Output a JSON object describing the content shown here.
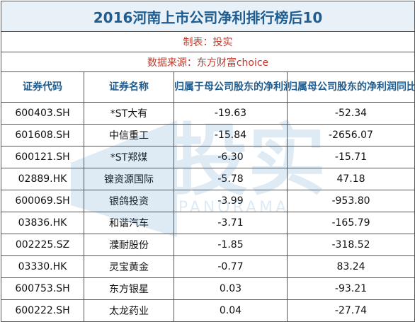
{
  "table": {
    "title": "2016河南上市公司净利排行榜后10",
    "maker": "制表：投实",
    "source": "数据来源：东方财富choice",
    "headers": [
      "证券代码",
      "证券名称",
      "归属于母公司股东的净利润（亿元）",
      "归属母公司股东的净利润同比增长率（%）"
    ],
    "rows": [
      {
        "code": "600403.SH",
        "name": "*ST大有",
        "profit": "-19.63",
        "growth": "-52.34"
      },
      {
        "code": "601608.SH",
        "name": "中信重工",
        "profit": "-15.84",
        "growth": "-2656.07"
      },
      {
        "code": "600121.SH",
        "name": "*ST郑煤",
        "profit": "-6.30",
        "growth": "-15.71"
      },
      {
        "code": "02889.HK",
        "name": "镍资源国际",
        "profit": "-5.78",
        "growth": "47.18"
      },
      {
        "code": "600069.SH",
        "name": "银鸽投资",
        "profit": "-3.99",
        "growth": "-953.80"
      },
      {
        "code": "03836.HK",
        "name": "和谐汽车",
        "profit": "-3.71",
        "growth": "-165.79"
      },
      {
        "code": "002225.SZ",
        "name": "濮耐股份",
        "profit": "-1.85",
        "growth": "-318.52"
      },
      {
        "code": "03330.HK",
        "name": "灵宝黄金",
        "profit": "-0.77",
        "growth": "83.24"
      },
      {
        "code": "600753.SH",
        "name": "东方银星",
        "profit": "0.03",
        "growth": "-93.21"
      },
      {
        "code": "600222.SH",
        "name": "太龙药业",
        "profit": "0.04",
        "growth": "-27.74"
      }
    ]
  },
  "watermark": {
    "text": "投实",
    "subtext": "PANORAMA",
    "color": "#1f6fb5"
  },
  "colors": {
    "title": "#1f5c8f",
    "source": "#c0392b",
    "border": "#555555"
  }
}
